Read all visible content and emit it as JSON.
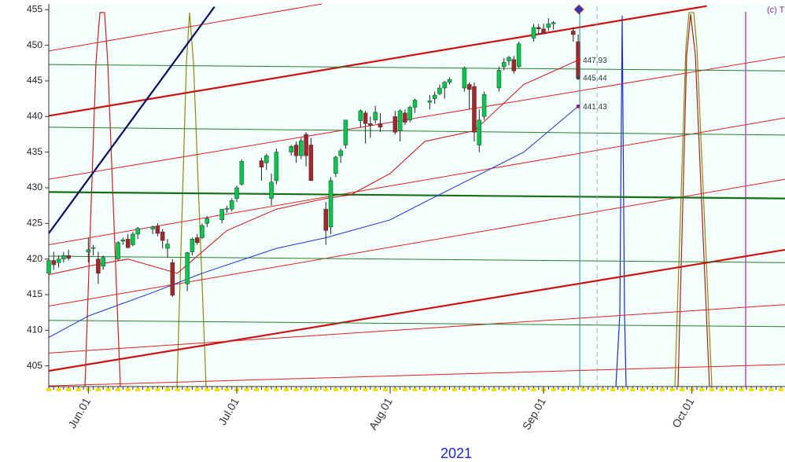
{
  "chart_data": {
    "type": "candlestick",
    "xlabel": "2021",
    "copyright": "(c) T",
    "xlim": [
      144,
      292.8
    ],
    "ylim": [
      402.1,
      455.8
    ],
    "xticks": [
      {
        "value": 152,
        "label": "Jun.01"
      },
      {
        "value": 182,
        "label": "Jul.01"
      },
      {
        "value": 213,
        "label": "Aug.01"
      },
      {
        "value": 244,
        "label": "Sep.01"
      },
      {
        "value": 274,
        "label": "Oct.01"
      }
    ],
    "yticks": [
      405,
      410,
      415,
      420,
      425,
      430,
      435,
      440,
      445,
      450,
      455
    ],
    "up_color": "#00c84a",
    "down_color": "#a3262a",
    "x": [
      144,
      145,
      146,
      147,
      148,
      152,
      153,
      154,
      155,
      158,
      159,
      160,
      161,
      162,
      165,
      166,
      167,
      168,
      169,
      172,
      173,
      174,
      175,
      176,
      179,
      180,
      181,
      182,
      183,
      187,
      188,
      189,
      190,
      193,
      194,
      195,
      196,
      197,
      200,
      201,
      202,
      203,
      204,
      207,
      208,
      209,
      210,
      211,
      214,
      215,
      216,
      217,
      218,
      221,
      222,
      223,
      224,
      225,
      228,
      229,
      230,
      231,
      232,
      235,
      236,
      237,
      238,
      239,
      242,
      243,
      244,
      245,
      246,
      250,
      251
    ],
    "open": [
      418,
      419.8,
      419.5,
      420,
      420.5,
      421,
      421.5,
      420,
      419,
      420,
      422.5,
      422.8,
      422,
      423.5,
      424.2,
      424.6,
      423.8,
      421.5,
      419.5,
      416.5,
      421,
      423,
      423,
      425,
      425.5,
      427,
      427,
      428.5,
      430.5,
      433.8,
      433.5,
      428.5,
      431,
      435,
      436,
      434.5,
      437.5,
      436,
      427,
      424.5,
      432,
      434.5,
      436,
      439.4,
      440.5,
      439,
      439.5,
      439,
      440,
      438,
      440.5,
      439.5,
      441.3,
      442,
      442.5,
      443.2,
      444,
      444.8,
      444,
      444.5,
      444.2,
      436,
      440,
      444,
      447,
      447.8,
      448,
      447,
      451,
      452.5,
      452.3,
      452.5,
      453,
      452,
      450.5
    ],
    "high": [
      420.5,
      421,
      420.5,
      421,
      421.3,
      423,
      422,
      421,
      420.5,
      422.5,
      423,
      423.5,
      423.8,
      424.5,
      424.7,
      425,
      424.2,
      422.8,
      420,
      421,
      423,
      423.5,
      425,
      426,
      427,
      427.5,
      428.5,
      430.3,
      434,
      434.2,
      434.8,
      432,
      435.5,
      436,
      436.5,
      437,
      437.8,
      437,
      428,
      431.5,
      434.5,
      435.5,
      439.5,
      441,
      440.8,
      440,
      441.5,
      440.5,
      440.8,
      441,
      441,
      441.5,
      442.5,
      443,
      443.5,
      444.5,
      445,
      445.5,
      447,
      444.8,
      444.8,
      441,
      443.5,
      447,
      448.2,
      448.5,
      448.5,
      450.5,
      453,
      453,
      453,
      453.8,
      453.4,
      452.5,
      451.5
    ],
    "low": [
      417,
      418.5,
      418.8,
      419.5,
      419.8,
      419.5,
      420.5,
      416.5,
      418.5,
      419.8,
      422,
      421.5,
      421.8,
      422.8,
      423.5,
      423.2,
      421.5,
      420.2,
      414.7,
      415.5,
      420.5,
      422,
      422.8,
      424.5,
      425,
      426.5,
      426.7,
      428,
      430.3,
      431,
      432.5,
      427.5,
      430.5,
      434.5,
      433.5,
      434,
      433,
      431,
      422,
      423.5,
      431.5,
      433.5,
      435.5,
      438.5,
      436.2,
      437,
      439,
      437.8,
      437.5,
      436.5,
      438.8,
      439.2,
      440.5,
      441,
      441.8,
      443,
      442.5,
      444.5,
      443.5,
      441,
      436.5,
      435,
      439.5,
      443.5,
      446.5,
      447.2,
      446,
      446.8,
      450.5,
      451.5,
      451.8,
      452,
      452.2,
      450.5,
      445.2
    ],
    "close": [
      419.8,
      419.2,
      420,
      420.5,
      420.1,
      421.3,
      421.6,
      418,
      420.2,
      422.3,
      422.7,
      421.6,
      423.5,
      424.3,
      424.5,
      423.6,
      422.6,
      422.1,
      414.9,
      420.9,
      422.8,
      422.3,
      424.7,
      425.7,
      427,
      427.1,
      428.2,
      430,
      433.7,
      432.9,
      434.5,
      430.8,
      435,
      435.8,
      434.5,
      436.6,
      434.5,
      431,
      424,
      431,
      434.3,
      435.2,
      439.5,
      440.8,
      439,
      438.8,
      440.6,
      438.5,
      437.8,
      440.8,
      439.2,
      441.3,
      442.3,
      442.2,
      443,
      444,
      444.8,
      445.2,
      446.8,
      443.8,
      437.8,
      439.5,
      443.1,
      446.5,
      447.6,
      448.3,
      446.4,
      450.2,
      452.5,
      452.3,
      451.6,
      453,
      453.2,
      451.5,
      445.44
    ],
    "overlays": [
      {
        "color": "#cc1111",
        "thick": true,
        "x": [
          144,
          277
        ],
        "values": [
          440.1,
          455.5
        ]
      },
      {
        "color": "#cc1111",
        "thick": true,
        "x": [
          144,
          292.8
        ],
        "values": [
          404.3,
          421.3
        ]
      },
      {
        "color": "#dd2222",
        "thick": false,
        "x": [
          144,
          199.2
        ],
        "values": [
          449.2,
          455.8
        ]
      },
      {
        "color": "#dd2222",
        "thick": false,
        "x": [
          144,
          292.8
        ],
        "values": [
          431.2,
          448.4
        ]
      },
      {
        "color": "#dd2222",
        "thick": false,
        "x": [
          144,
          292.8
        ],
        "values": [
          422,
          439.8
        ]
      },
      {
        "color": "#dd2222",
        "thick": false,
        "x": [
          144,
          292.8
        ],
        "values": [
          413.4,
          431.2
        ]
      },
      {
        "color": "#dd2222",
        "thick": false,
        "x": [
          144,
          292.8
        ],
        "values": [
          406.8,
          413.6
        ]
      },
      {
        "color": "#dd2222",
        "thick": false,
        "x": [
          144,
          292.8
        ],
        "values": [
          402.2,
          405.2
        ]
      },
      {
        "color": "#1a6e1a",
        "thick": true,
        "x": [
          144,
          292.8
        ],
        "values": [
          429.4,
          428.5
        ]
      },
      {
        "color": "#2e7d2e",
        "thick": false,
        "x": [
          144,
          292.8
        ],
        "values": [
          447.3,
          446.4
        ]
      },
      {
        "color": "#2e7d2e",
        "thick": false,
        "x": [
          144,
          292.8
        ],
        "values": [
          438.5,
          437.4
        ]
      },
      {
        "color": "#2e7d2e",
        "thick": false,
        "x": [
          144,
          292.8
        ],
        "values": [
          420.4,
          419.5
        ]
      },
      {
        "color": "#2e7d2e",
        "thick": false,
        "x": [
          144,
          292.8
        ],
        "values": [
          411.4,
          410.5
        ]
      },
      {
        "color": "#0a0a60",
        "thick": true,
        "x": [
          144,
          177.5
        ],
        "values": [
          423.6,
          455.4
        ]
      },
      {
        "color": "#1f2fd0",
        "thick": false,
        "x": [
          144,
          152,
          165,
          175,
          190,
          200,
          213,
          220,
          230,
          240,
          251
        ],
        "values": [
          409,
          412,
          415.3,
          418,
          421.5,
          423,
          425.5,
          428,
          431.5,
          435,
          441.43
        ]
      },
      {
        "color": "#cc1111",
        "thick": false,
        "x": [
          144,
          152,
          160,
          170,
          180,
          190,
          200,
          205,
          213,
          220,
          230,
          240,
          251
        ],
        "values": [
          417.8,
          419,
          420,
          418,
          424,
          427,
          428.5,
          429,
          432,
          436.5,
          438,
          444.5,
          447.93
        ]
      }
    ],
    "markers": [
      {
        "value": 447.93,
        "color": "#e01010"
      },
      {
        "value": 445.44,
        "color": "#444444"
      },
      {
        "value": 441.43,
        "color": "#902090"
      }
    ]
  }
}
